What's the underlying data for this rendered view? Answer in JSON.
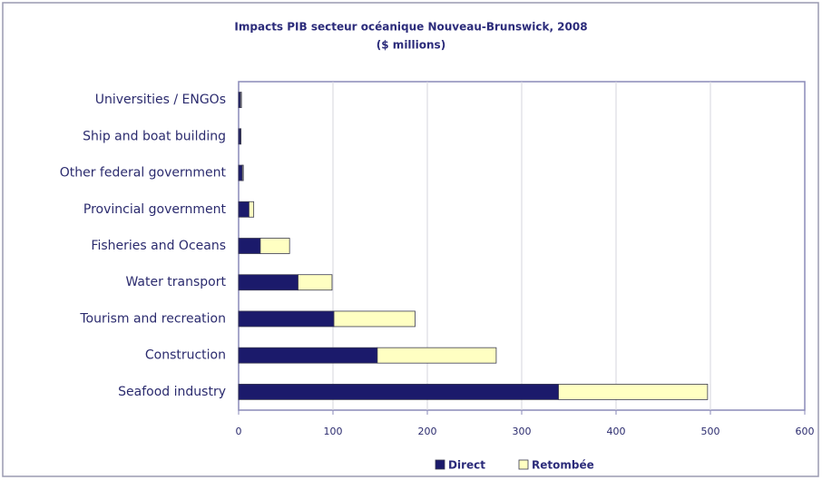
{
  "chart_data": {
    "type": "stacked-barh",
    "title": "Impacts PIB secteur océanique Nouveau-Brunswick, 2008",
    "subtitle": "($ millions)",
    "categories": [
      "Universities / ENGOs",
      "Ship and boat building",
      "Other federal government",
      "Provincial government",
      "Fisheries and Oceans",
      "Water transport",
      "Tourism and recreation",
      "Construction",
      "Seafood industry"
    ],
    "series": [
      {
        "name": "Direct",
        "color": "#1b1a6b",
        "values": [
          2,
          2,
          4,
          11,
          23,
          63,
          101,
          147,
          339
        ]
      },
      {
        "name": "Retombée",
        "color": "#ffffc2",
        "values": [
          1,
          0.5,
          1,
          5,
          31,
          36,
          86,
          126,
          158
        ]
      }
    ],
    "xlim": [
      0,
      600
    ],
    "xticks": [
      0,
      100,
      200,
      300,
      400,
      500,
      600
    ],
    "grid": true,
    "legend": "bottom"
  }
}
